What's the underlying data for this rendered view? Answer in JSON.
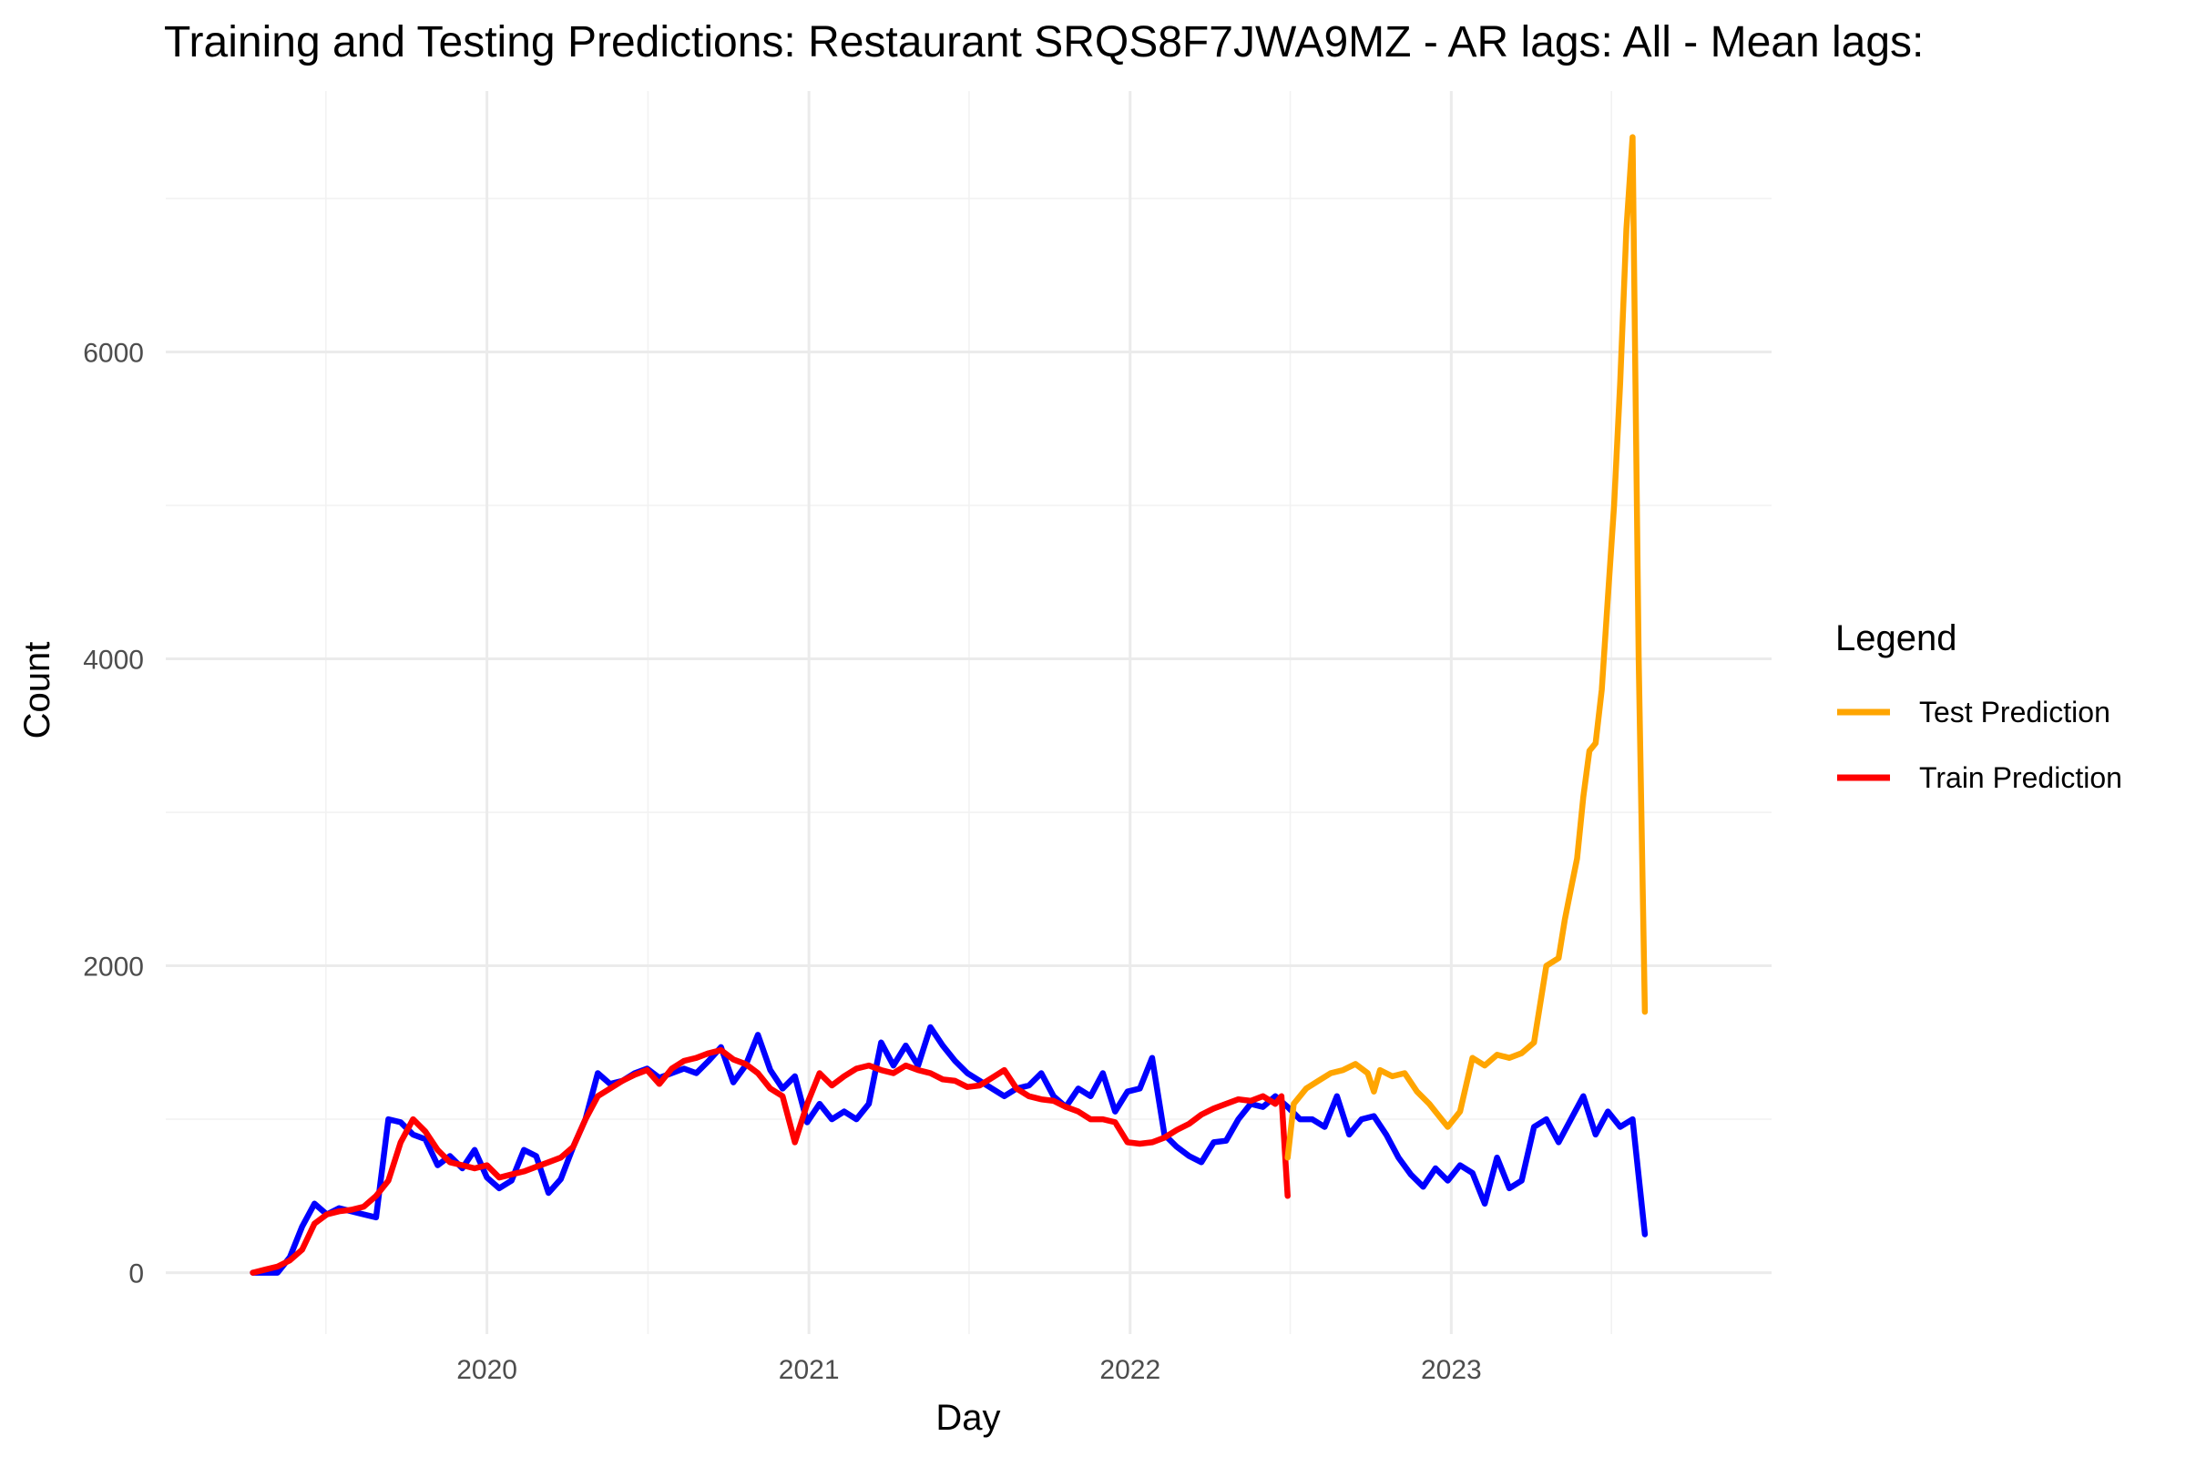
{
  "chart_data": {
    "type": "line",
    "title": "Training and Testing Predictions: Restaurant SRQS8F7JWA9MZ - AR lags: All - Mean lags:",
    "xlabel": "Day",
    "ylabel": "Count",
    "x_ticks": [
      "2020",
      "2021",
      "2022",
      "2023"
    ],
    "y_ticks": [
      "0",
      "2000",
      "4000",
      "6000"
    ],
    "xlim": [
      "2019-01-01",
      "2023-12-31"
    ],
    "ylim": [
      -400,
      7700
    ],
    "grid": true,
    "legend": {
      "title": "Legend",
      "placement": "right",
      "entries": [
        {
          "label": "Test Prediction",
          "color": "#FFA500"
        },
        {
          "label": "Train Prediction",
          "color": "#FF0000"
        }
      ]
    },
    "series": [
      {
        "key": "actual",
        "color": "#0000FF",
        "x": [
          "2019-04-10",
          "2019-04-24",
          "2019-05-08",
          "2019-05-22",
          "2019-06-05",
          "2019-06-19",
          "2019-07-03",
          "2019-07-17",
          "2019-07-31",
          "2019-08-14",
          "2019-08-28",
          "2019-09-11",
          "2019-09-25",
          "2019-10-09",
          "2019-10-23",
          "2019-11-06",
          "2019-11-20",
          "2019-12-04",
          "2019-12-18",
          "2020-01-01",
          "2020-01-15",
          "2020-01-29",
          "2020-02-12",
          "2020-02-26",
          "2020-03-11",
          "2020-03-25",
          "2020-04-08",
          "2020-04-22",
          "2020-05-06",
          "2020-05-20",
          "2020-06-03",
          "2020-06-17",
          "2020-07-01",
          "2020-07-15",
          "2020-07-29",
          "2020-08-12",
          "2020-08-26",
          "2020-09-09",
          "2020-09-23",
          "2020-10-07",
          "2020-10-21",
          "2020-11-04",
          "2020-11-18",
          "2020-12-02",
          "2020-12-16",
          "2020-12-30",
          "2021-01-13",
          "2021-01-27",
          "2021-02-10",
          "2021-02-24",
          "2021-03-10",
          "2021-03-24",
          "2021-04-07",
          "2021-04-21",
          "2021-05-05",
          "2021-05-19",
          "2021-06-02",
          "2021-06-16",
          "2021-06-30",
          "2021-07-14",
          "2021-07-28",
          "2021-08-11",
          "2021-08-25",
          "2021-09-08",
          "2021-09-22",
          "2021-10-06",
          "2021-10-20",
          "2021-11-03",
          "2021-11-17",
          "2021-12-01",
          "2021-12-15",
          "2021-12-29",
          "2022-01-12",
          "2022-01-26",
          "2022-02-09",
          "2022-02-23",
          "2022-03-09",
          "2022-03-23",
          "2022-04-06",
          "2022-04-20",
          "2022-05-04",
          "2022-05-18",
          "2022-06-01",
          "2022-06-15",
          "2022-06-29",
          "2022-07-13",
          "2022-07-27",
          "2022-08-10",
          "2022-08-24",
          "2022-09-07",
          "2022-09-21",
          "2022-10-05",
          "2022-10-19",
          "2022-11-02",
          "2022-11-16",
          "2022-11-30",
          "2022-12-14",
          "2022-12-28",
          "2023-01-11",
          "2023-01-25",
          "2023-02-08",
          "2023-02-22",
          "2023-03-08",
          "2023-03-22",
          "2023-04-05",
          "2023-04-19",
          "2023-05-03",
          "2023-05-17",
          "2023-05-31",
          "2023-06-14",
          "2023-06-28",
          "2023-07-12",
          "2023-07-26",
          "2023-08-09"
        ],
        "values": [
          0,
          0,
          0,
          100,
          300,
          450,
          380,
          420,
          400,
          380,
          360,
          1000,
          980,
          900,
          870,
          700,
          760,
          680,
          800,
          620,
          550,
          600,
          800,
          760,
          520,
          610,
          820,
          1000,
          1300,
          1230,
          1250,
          1300,
          1330,
          1270,
          1300,
          1330,
          1300,
          1380,
          1470,
          1240,
          1350,
          1550,
          1320,
          1200,
          1280,
          980,
          1100,
          1000,
          1050,
          1000,
          1100,
          1500,
          1350,
          1480,
          1350,
          1600,
          1480,
          1380,
          1300,
          1250,
          1200,
          1150,
          1200,
          1220,
          1300,
          1150,
          1080,
          1200,
          1150,
          1300,
          1050,
          1180,
          1200,
          1400,
          900,
          820,
          760,
          720,
          850,
          860,
          1000,
          1100,
          1080,
          1150,
          1080,
          1000,
          1000,
          950,
          1150,
          900,
          1000,
          1020,
          900,
          750,
          640,
          560,
          680,
          600,
          700,
          650,
          450,
          750,
          550,
          600,
          950,
          1000,
          850,
          1000,
          1150,
          900,
          1050,
          950,
          1000,
          250
        ]
      },
      {
        "key": "train",
        "color": "#FF0000",
        "x": [
          "2019-04-10",
          "2019-04-24",
          "2019-05-08",
          "2019-05-22",
          "2019-06-05",
          "2019-06-19",
          "2019-07-03",
          "2019-07-17",
          "2019-07-31",
          "2019-08-14",
          "2019-08-28",
          "2019-09-11",
          "2019-09-25",
          "2019-10-09",
          "2019-10-23",
          "2019-11-06",
          "2019-11-20",
          "2019-12-04",
          "2019-12-18",
          "2020-01-01",
          "2020-01-15",
          "2020-01-29",
          "2020-02-12",
          "2020-02-26",
          "2020-03-11",
          "2020-03-25",
          "2020-04-08",
          "2020-04-22",
          "2020-05-06",
          "2020-05-20",
          "2020-06-03",
          "2020-06-17",
          "2020-07-01",
          "2020-07-15",
          "2020-07-29",
          "2020-08-12",
          "2020-08-26",
          "2020-09-09",
          "2020-09-23",
          "2020-10-07",
          "2020-10-21",
          "2020-11-04",
          "2020-11-18",
          "2020-12-02",
          "2020-12-16",
          "2020-12-30",
          "2021-01-13",
          "2021-01-27",
          "2021-02-10",
          "2021-02-24",
          "2021-03-10",
          "2021-03-24",
          "2021-04-07",
          "2021-04-21",
          "2021-05-05",
          "2021-05-19",
          "2021-06-02",
          "2021-06-16",
          "2021-06-30",
          "2021-07-14",
          "2021-07-28",
          "2021-08-11",
          "2021-08-25",
          "2021-09-08",
          "2021-09-22",
          "2021-10-06",
          "2021-10-20",
          "2021-11-03",
          "2021-11-17",
          "2021-12-01",
          "2021-12-15",
          "2021-12-29",
          "2022-01-12",
          "2022-01-26",
          "2022-02-09",
          "2022-02-23",
          "2022-03-09",
          "2022-03-23",
          "2022-04-06",
          "2022-04-20",
          "2022-05-04",
          "2022-05-18",
          "2022-06-01",
          "2022-06-15",
          "2022-06-22",
          "2022-06-29"
        ],
        "values": [
          0,
          20,
          40,
          80,
          150,
          320,
          380,
          400,
          410,
          430,
          500,
          600,
          850,
          1000,
          920,
          800,
          720,
          700,
          680,
          700,
          620,
          640,
          660,
          690,
          720,
          750,
          820,
          1000,
          1150,
          1200,
          1250,
          1290,
          1320,
          1230,
          1330,
          1380,
          1400,
          1430,
          1450,
          1390,
          1360,
          1300,
          1200,
          1150,
          850,
          1100,
          1300,
          1220,
          1280,
          1330,
          1350,
          1320,
          1300,
          1350,
          1320,
          1300,
          1260,
          1250,
          1210,
          1220,
          1270,
          1320,
          1200,
          1150,
          1130,
          1120,
          1080,
          1050,
          1000,
          1000,
          980,
          850,
          840,
          850,
          880,
          930,
          970,
          1030,
          1070,
          1100,
          1130,
          1120,
          1150,
          1100,
          1150,
          500
        ]
      },
      {
        "key": "test",
        "color": "#FFA500",
        "x": [
          "2022-06-29",
          "2022-07-06",
          "2022-07-20",
          "2022-08-03",
          "2022-08-17",
          "2022-08-31",
          "2022-09-14",
          "2022-09-28",
          "2022-10-05",
          "2022-10-12",
          "2022-10-26",
          "2022-11-09",
          "2022-11-23",
          "2022-12-07",
          "2022-12-21",
          "2022-12-28",
          "2023-01-11",
          "2023-01-25",
          "2023-02-08",
          "2023-02-22",
          "2023-03-08",
          "2023-03-22",
          "2023-04-05",
          "2023-04-19",
          "2023-05-03",
          "2023-05-10",
          "2023-05-17",
          "2023-05-24",
          "2023-05-31",
          "2023-06-07",
          "2023-06-14",
          "2023-06-21",
          "2023-06-28",
          "2023-07-05",
          "2023-07-12",
          "2023-07-19",
          "2023-07-26",
          "2023-08-02",
          "2023-08-09"
        ],
        "values": [
          750,
          1100,
          1200,
          1250,
          1300,
          1320,
          1360,
          1300,
          1180,
          1320,
          1280,
          1300,
          1180,
          1100,
          1000,
          950,
          1050,
          1400,
          1350,
          1420,
          1400,
          1430,
          1500,
          2000,
          2050,
          2300,
          2500,
          2700,
          3100,
          3400,
          3450,
          3800,
          4400,
          5000,
          5800,
          6800,
          7400,
          4000,
          1700
        ]
      }
    ]
  }
}
